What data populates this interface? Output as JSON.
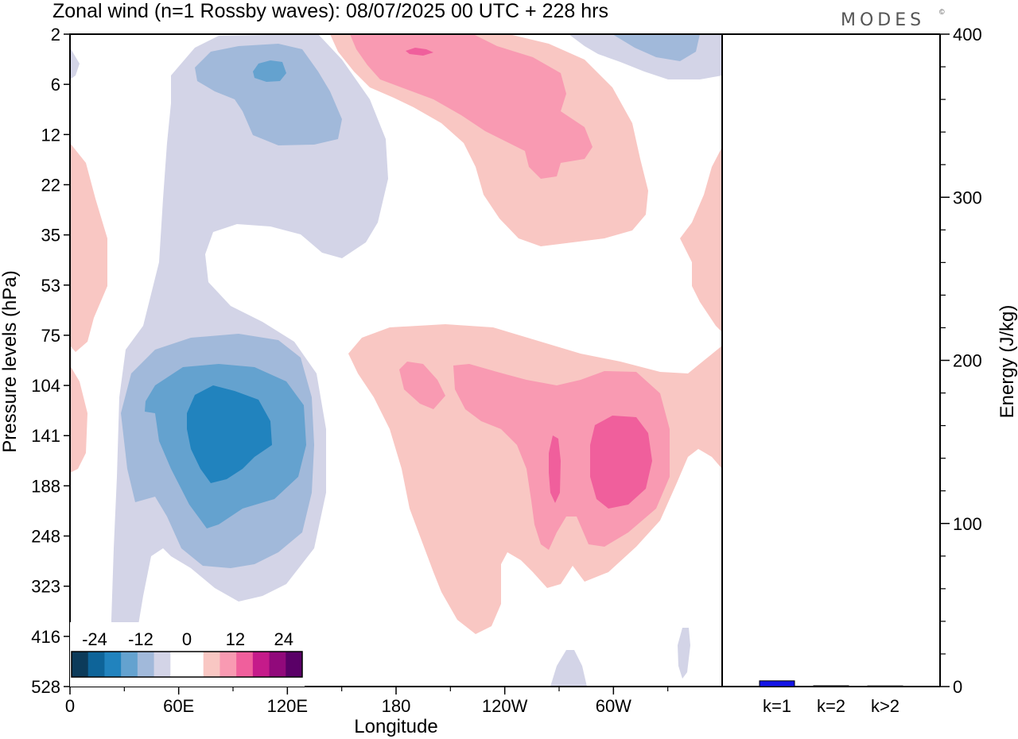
{
  "title": "Zonal wind (n=1 Rossby waves):  08/07/2025  00 UTC  + 228 hrs",
  "logo": {
    "text": "MODES",
    "mark": "©"
  },
  "chart_data": [
    {
      "type": "heatmap",
      "subtype": "filled-contour",
      "title": "Zonal wind (n=1 Rossby waves):  08/07/2025  00 UTC  + 228 hrs",
      "xlabel": "Longitude",
      "ylabel": "Pressure levels (hPa)",
      "x_ticks": [
        "0",
        "60E",
        "120E",
        "180",
        "120W",
        "60W"
      ],
      "x_tick_values": [
        0,
        60,
        120,
        180,
        240,
        300
      ],
      "xlim": [
        0,
        360
      ],
      "y_ticks": [
        "2",
        "6",
        "12",
        "22",
        "35",
        "53",
        "75",
        "104",
        "141",
        "188",
        "248",
        "323",
        "416",
        "528"
      ],
      "y_scale": "level index (top 2 hPa, bottom 528 hPa)",
      "colorbar": {
        "tick_labels": [
          "-24",
          "-12",
          "0",
          "12",
          "24"
        ],
        "colors": [
          "#0c3b5a",
          "#0e6499",
          "#2183be",
          "#64a2cf",
          "#a1b9da",
          "#d3d4e7",
          "#ffffff",
          "#ffffff",
          "#f9c7c3",
          "#f99ab2",
          "#f05f9c",
          "#c51b8a",
          "#91097b",
          "#5a0067"
        ]
      },
      "features": [
        {
          "sign": "negative",
          "peak_level_index": 5,
          "lon_center": 80,
          "level_center": "141",
          "approx_min": -15
        },
        {
          "sign": "negative",
          "lon_center": 95,
          "level_center": "6",
          "approx_min": -10
        },
        {
          "sign": "positive",
          "lon_center": 265,
          "level_center": "141",
          "approx_max": 12
        },
        {
          "sign": "positive",
          "lon_center": 195,
          "level_center": "6",
          "approx_max": 10
        }
      ]
    },
    {
      "type": "bar",
      "categories": [
        "k=1",
        "k=2",
        "k>2"
      ],
      "values": [
        3.5,
        0.5,
        0.4
      ],
      "ylabel": "Energy (J/kg)",
      "ylim": [
        0,
        400
      ],
      "y_ticks": [
        "0",
        "100",
        "200",
        "300",
        "400"
      ],
      "bar_color": "#1414e6"
    }
  ]
}
